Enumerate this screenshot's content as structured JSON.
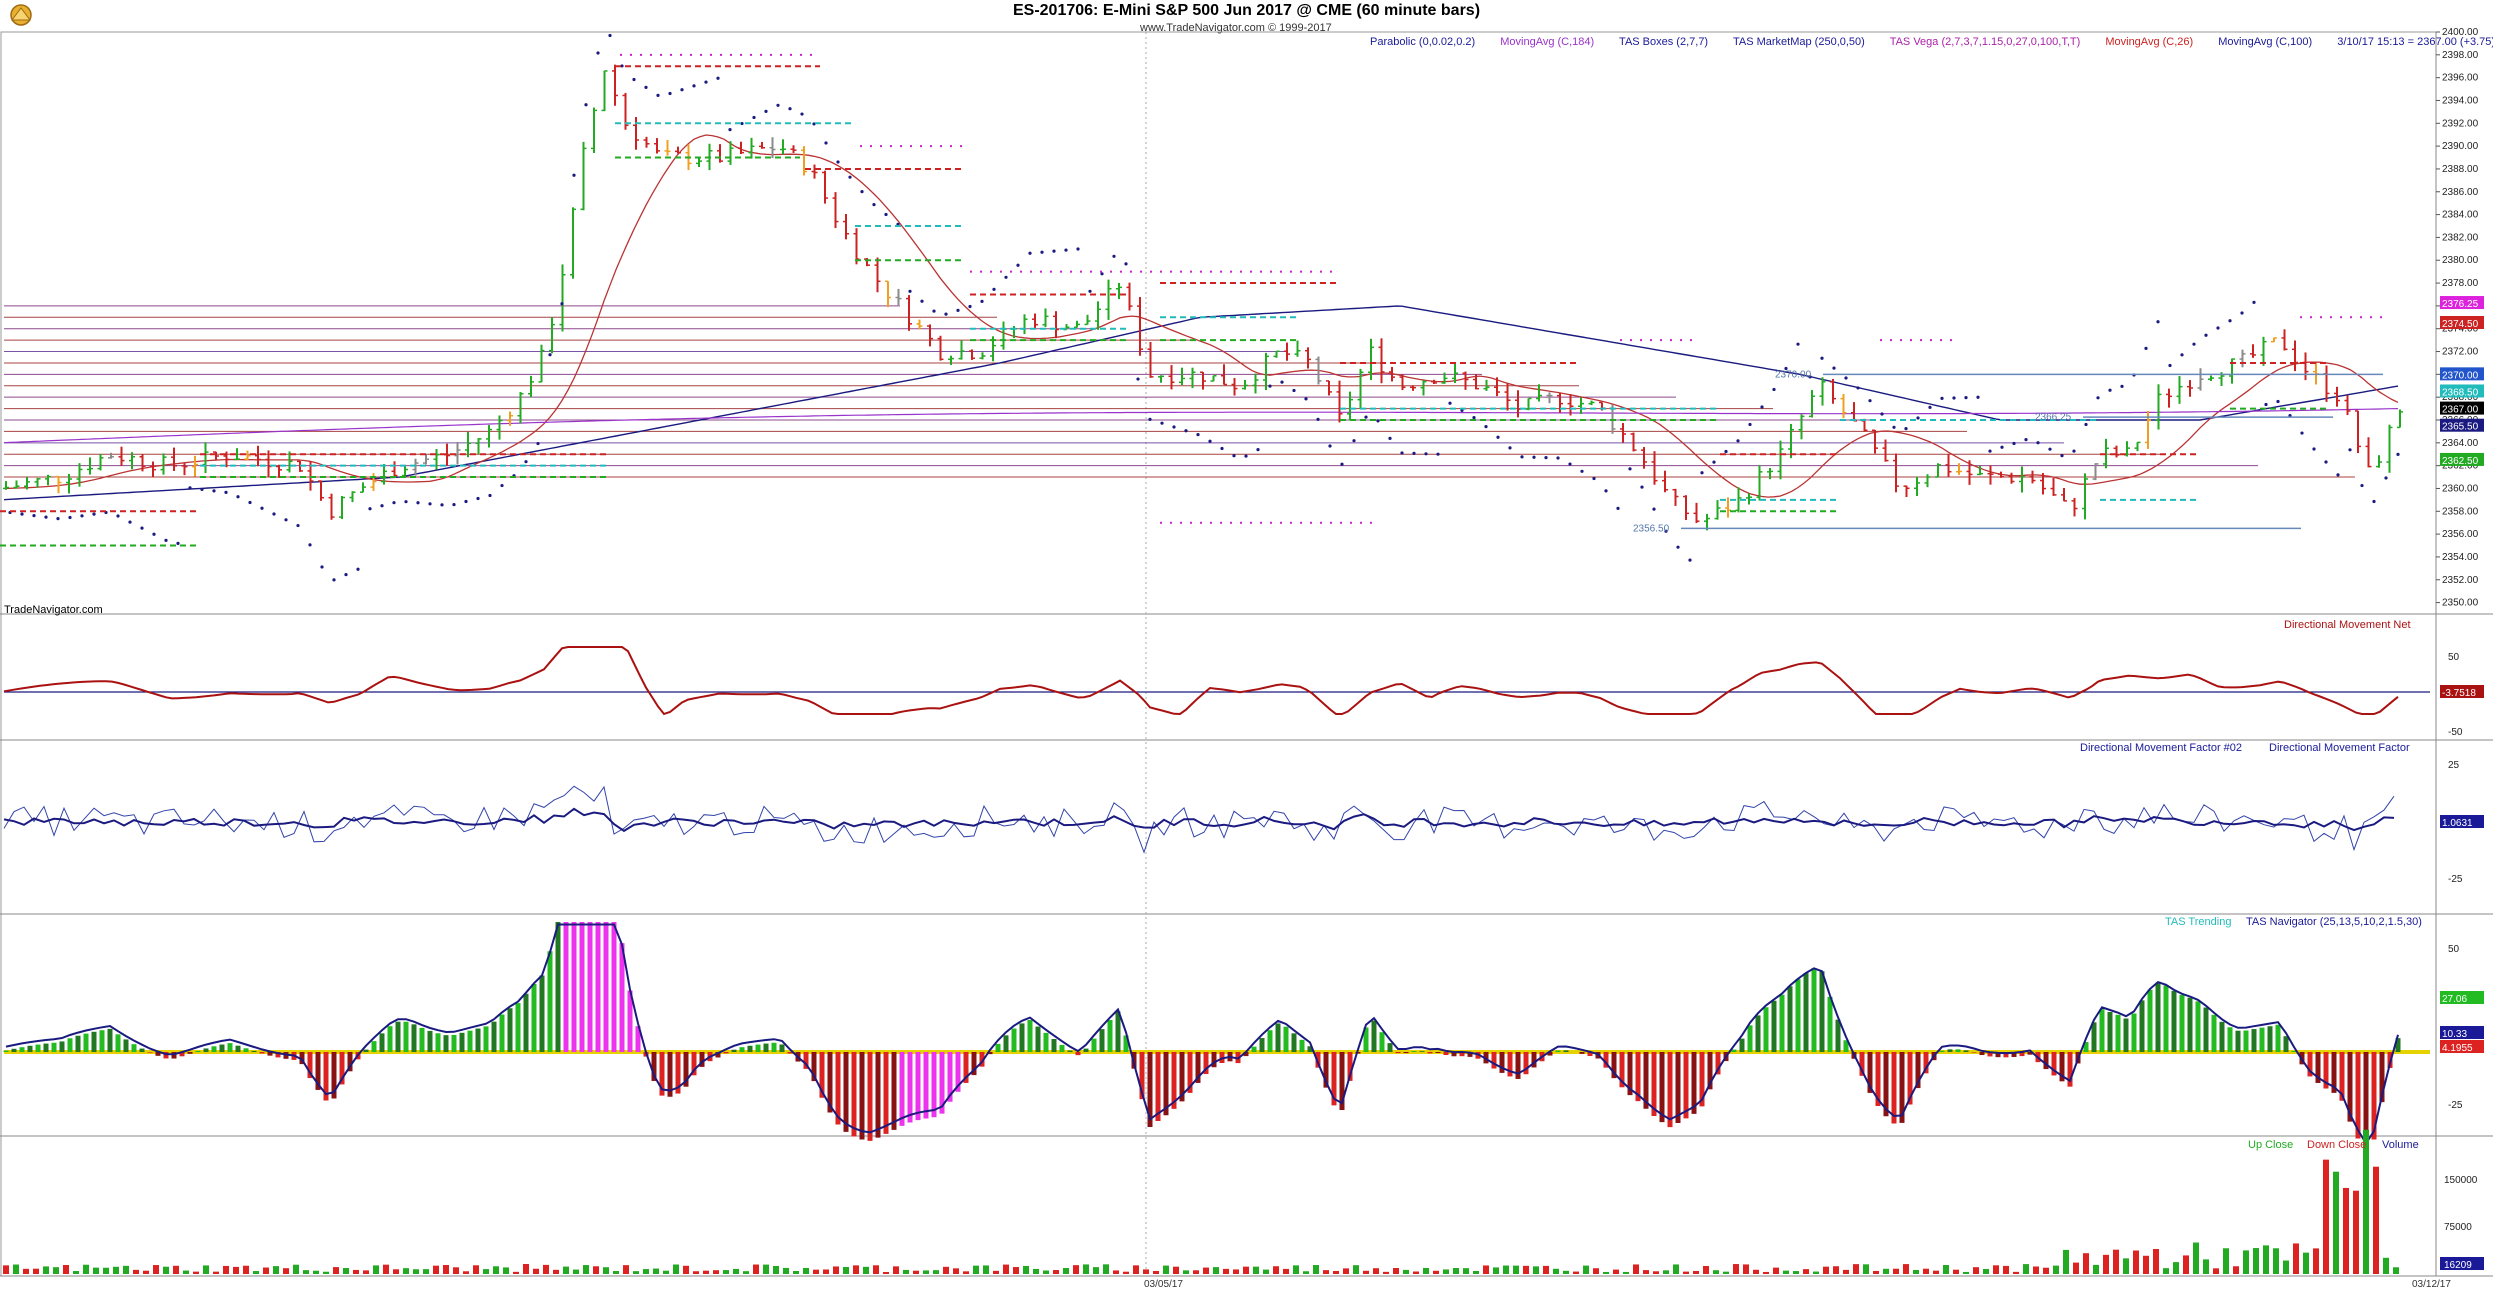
{
  "window": {
    "title": "ES-201706:  E-Mini S&P 500 Jun 2017 @ CME  (60 minute bars)",
    "subtitle": "www.TradeNavigator.com © 1999-2017",
    "watermark": "TradeNavigator.com"
  },
  "colors": {
    "up": "#22aa22",
    "down": "#cc2222",
    "accent_purple": "#9933cc",
    "navy": "#1a1a80",
    "teal": "#22bbbb"
  },
  "studies": [
    {
      "label": "Parabolic (0,0.02,0.2)",
      "color": "#1a1a99"
    },
    {
      "label": "MovingAvg (C,184)",
      "color": "#9933cc"
    },
    {
      "label": "TAS Boxes (2,7,7)",
      "color": "#1a1a99"
    },
    {
      "label": "TAS MarketMap (250,0,50)",
      "color": "#1a1a99"
    },
    {
      "label": "TAS Vega (2,7,3,7,1.15,0,27,0,100,T,T)",
      "color": "#aa22aa"
    },
    {
      "label": "MovingAvg (C,26)",
      "color": "#cc2222"
    },
    {
      "label": "MovingAvg (C,100)",
      "color": "#1a1a99"
    },
    {
      "label": "3/10/17 15:13 = 2367.00 (+3.75)",
      "color": "#1a1a99"
    }
  ],
  "price_axis": {
    "ticks": [
      "2400.00",
      "2398.00",
      "2396.00",
      "2394.00",
      "2392.00",
      "2390.00",
      "2388.00",
      "2386.00",
      "2384.00",
      "2382.00",
      "2380.00",
      "2378.00",
      "2376.00",
      "2374.00",
      "2372.00",
      "2370.00",
      "2368.00",
      "2366.00",
      "2364.00",
      "2362.00",
      "2360.00",
      "2358.00",
      "2356.00",
      "2354.00",
      "2352.00",
      "2350.00"
    ],
    "markers": [
      {
        "text": "2376.25",
        "bg": "#dd22dd",
        "fg": "#ffffff",
        "price": 2376.25
      },
      {
        "text": "2374.50",
        "bg": "#cc2222",
        "fg": "#ffffff",
        "price": 2374.5
      },
      {
        "text": "2370.00",
        "bg": "#2255cc",
        "fg": "#ffffff",
        "price": 2370.0
      },
      {
        "text": "2368.50",
        "bg": "#22bbbb",
        "fg": "#ffffff",
        "price": 2368.5
      },
      {
        "text": "2367.00",
        "bg": "#000000",
        "fg": "#ffffff",
        "price": 2367.0
      },
      {
        "text": "2365.50",
        "bg": "#1a1a80",
        "fg": "#ffffff",
        "price": 2365.5
      },
      {
        "text": "2362.50",
        "bg": "#22aa22",
        "fg": "#ffffff",
        "price": 2362.5
      }
    ],
    "annotations": [
      {
        "text": "2370.00",
        "price": 2370.0
      },
      {
        "text": "2366.25",
        "price": 2366.25
      },
      {
        "text": "2356.50",
        "price": 2356.5
      }
    ]
  },
  "panes": {
    "dmn": {
      "title": "Directional Movement Net",
      "ticks": [
        "50",
        "-50"
      ],
      "value": "-3.7518"
    },
    "dmf": {
      "title_a": "Directional Movement Factor #02",
      "title_b": "Directional Movement Factor",
      "ticks": [
        "25",
        "-25"
      ],
      "value": "1.0631"
    },
    "tas": {
      "title_a": "TAS Trending",
      "title_b": "TAS Navigator (25,13,5,10,2,1.5,30)",
      "ticks": [
        "50",
        "-25"
      ],
      "values": [
        "27.06",
        "10.33",
        "4.1955"
      ]
    },
    "vol": {
      "title_a": "Up Close",
      "title_b": "Down Close",
      "title_c": "Volume",
      "ticks": [
        "150000",
        "75000"
      ],
      "value": "16209"
    }
  },
  "dates": [
    "03/05/17",
    "03/12/17"
  ]
}
